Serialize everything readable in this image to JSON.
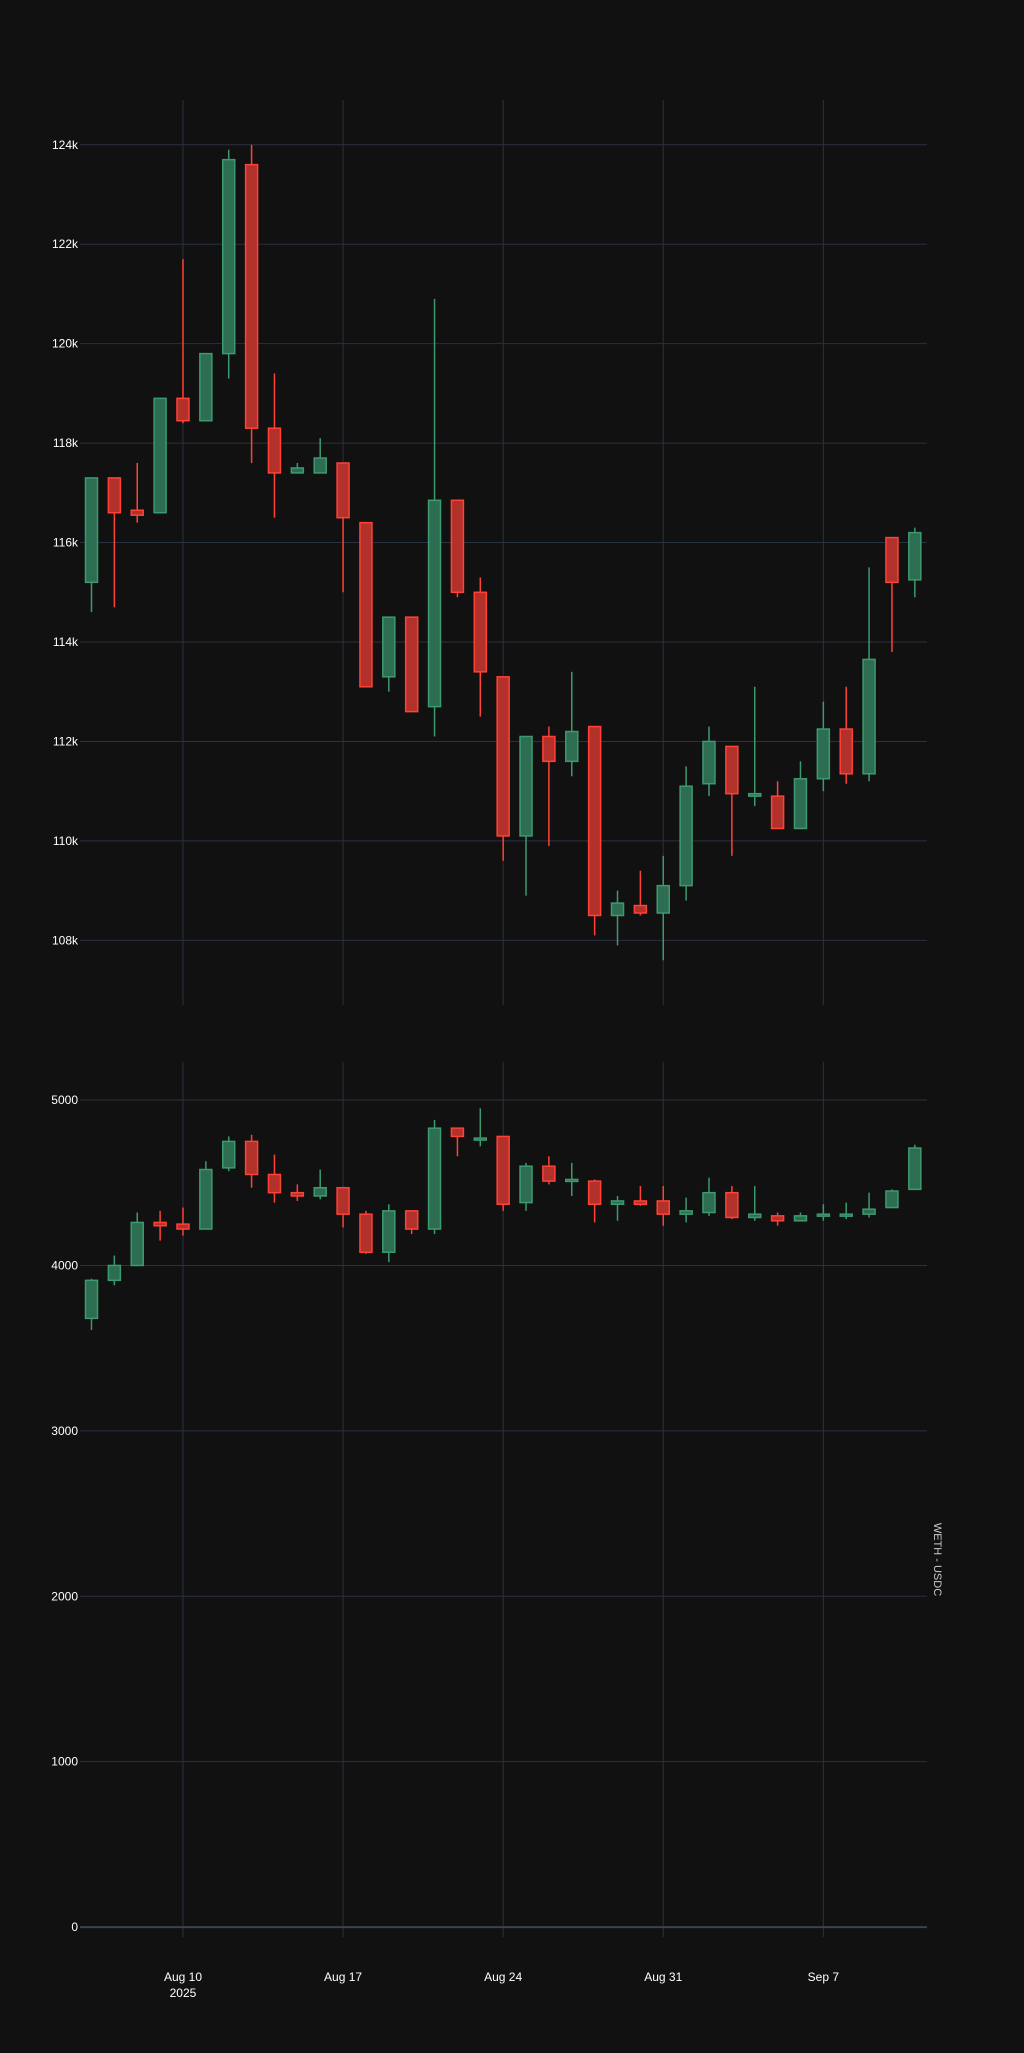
{
  "background": "#111111",
  "colors": {
    "up": "#3d9970",
    "up_fill": "#2d6e52",
    "down": "#ff4136",
    "down_fill": "#b2322b",
    "grid": "#2a3140",
    "tick_text": "#ffffff",
    "zero_line": "#3a4252"
  },
  "chart_data": [
    {
      "type": "candlestick",
      "title": "",
      "ylabel": "",
      "series_label": "",
      "ylim": [
        106700,
        124900
      ],
      "yticks": [
        108000,
        110000,
        112000,
        114000,
        116000,
        118000,
        120000,
        122000,
        124000
      ],
      "ytick_labels": [
        "108k",
        "110k",
        "112k",
        "114k",
        "116k",
        "118k",
        "120k",
        "122k",
        "124k"
      ],
      "grid": true,
      "candles": [
        {
          "date": "2025-08-06",
          "open": 115200,
          "high": 117300,
          "low": 114600,
          "close": 117300
        },
        {
          "date": "2025-08-07",
          "open": 117300,
          "high": 117300,
          "low": 114700,
          "close": 116600
        },
        {
          "date": "2025-08-08",
          "open": 116650,
          "high": 117600,
          "low": 116400,
          "close": 116550
        },
        {
          "date": "2025-08-09",
          "open": 116600,
          "high": 118900,
          "low": 116600,
          "close": 118900
        },
        {
          "date": "2025-08-10",
          "open": 118900,
          "high": 121700,
          "low": 118400,
          "close": 118450
        },
        {
          "date": "2025-08-11",
          "open": 118450,
          "high": 119800,
          "low": 118450,
          "close": 119800
        },
        {
          "date": "2025-08-12",
          "open": 119800,
          "high": 123900,
          "low": 119300,
          "close": 123700
        },
        {
          "date": "2025-08-13",
          "open": 123600,
          "high": 124000,
          "low": 117600,
          "close": 118300
        },
        {
          "date": "2025-08-14",
          "open": 118300,
          "high": 119400,
          "low": 116500,
          "close": 117400
        },
        {
          "date": "2025-08-15",
          "open": 117400,
          "high": 117600,
          "low": 117400,
          "close": 117500
        },
        {
          "date": "2025-08-16",
          "open": 117400,
          "high": 118100,
          "low": 117400,
          "close": 117700
        },
        {
          "date": "2025-08-17",
          "open": 117600,
          "high": 117600,
          "low": 115000,
          "close": 116500
        },
        {
          "date": "2025-08-18",
          "open": 116400,
          "high": 116400,
          "low": 113100,
          "close": 113100
        },
        {
          "date": "2025-08-19",
          "open": 113300,
          "high": 114500,
          "low": 113000,
          "close": 114500
        },
        {
          "date": "2025-08-20",
          "open": 114500,
          "high": 114500,
          "low": 112600,
          "close": 112600
        },
        {
          "date": "2025-08-21",
          "open": 112700,
          "high": 120900,
          "low": 112100,
          "close": 116850
        },
        {
          "date": "2025-08-22",
          "open": 116850,
          "high": 116850,
          "low": 114900,
          "close": 115000
        },
        {
          "date": "2025-08-23",
          "open": 115000,
          "high": 115300,
          "low": 112500,
          "close": 113400
        },
        {
          "date": "2025-08-24",
          "open": 113300,
          "high": 113300,
          "low": 109600,
          "close": 110100
        },
        {
          "date": "2025-08-25",
          "open": 110100,
          "high": 112100,
          "low": 108900,
          "close": 112100
        },
        {
          "date": "2025-08-26",
          "open": 112100,
          "high": 112300,
          "low": 109900,
          "close": 111600
        },
        {
          "date": "2025-08-27",
          "open": 111600,
          "high": 113400,
          "low": 111300,
          "close": 112200
        },
        {
          "date": "2025-08-28",
          "open": 112300,
          "high": 112300,
          "low": 108100,
          "close": 108500
        },
        {
          "date": "2025-08-29",
          "open": 108500,
          "high": 109000,
          "low": 107900,
          "close": 108750
        },
        {
          "date": "2025-08-30",
          "open": 108700,
          "high": 109400,
          "low": 108500,
          "close": 108550
        },
        {
          "date": "2025-08-31",
          "open": 108550,
          "high": 109700,
          "low": 107600,
          "close": 109100
        },
        {
          "date": "2025-09-01",
          "open": 109100,
          "high": 111500,
          "low": 108800,
          "close": 111100
        },
        {
          "date": "2025-09-02",
          "open": 111150,
          "high": 112300,
          "low": 110900,
          "close": 112000
        },
        {
          "date": "2025-09-03",
          "open": 111900,
          "high": 111900,
          "low": 109700,
          "close": 110950
        },
        {
          "date": "2025-09-04",
          "open": 110900,
          "high": 113100,
          "low": 110700,
          "close": 110950
        },
        {
          "date": "2025-09-05",
          "open": 110900,
          "high": 111200,
          "low": 110250,
          "close": 110250
        },
        {
          "date": "2025-09-06",
          "open": 110250,
          "high": 111600,
          "low": 110250,
          "close": 111250
        },
        {
          "date": "2025-09-07",
          "open": 111250,
          "high": 112800,
          "low": 111000,
          "close": 112250
        },
        {
          "date": "2025-09-08",
          "open": 112250,
          "high": 113100,
          "low": 111150,
          "close": 111350
        },
        {
          "date": "2025-09-09",
          "open": 111350,
          "high": 115500,
          "low": 111200,
          "close": 113650
        },
        {
          "date": "2025-09-10",
          "open": 116100,
          "high": 116100,
          "low": 113800,
          "close": 115200
        },
        {
          "date": "2025-09-11",
          "open": 115250,
          "high": 116300,
          "low": 114900,
          "close": 116200
        }
      ]
    },
    {
      "type": "candlestick",
      "title": "",
      "ylabel": "",
      "series_label": "WETH - USDC",
      "ylim": [
        -60,
        5230
      ],
      "yticks": [
        0,
        1000,
        2000,
        3000,
        4000,
        5000
      ],
      "ytick_labels": [
        "0",
        "1000",
        "2000",
        "3000",
        "4000",
        "5000"
      ],
      "grid": true,
      "xticks": [
        "2025-08-10",
        "2025-08-17",
        "2025-08-24",
        "2025-08-31",
        "2025-09-07"
      ],
      "xtick_labels": [
        "Aug 10",
        "Aug 17",
        "Aug 24",
        "Aug 31",
        "Sep 7"
      ],
      "xtick_year": "2025",
      "candles": [
        {
          "date": "2025-08-06",
          "open": 3680,
          "high": 3920,
          "low": 3610,
          "close": 3910
        },
        {
          "date": "2025-08-07",
          "open": 3910,
          "high": 4060,
          "low": 3880,
          "close": 4000
        },
        {
          "date": "2025-08-08",
          "open": 4000,
          "high": 4320,
          "low": 4000,
          "close": 4260
        },
        {
          "date": "2025-08-09",
          "open": 4260,
          "high": 4330,
          "low": 4150,
          "close": 4240
        },
        {
          "date": "2025-08-10",
          "open": 4250,
          "high": 4350,
          "low": 4180,
          "close": 4220
        },
        {
          "date": "2025-08-11",
          "open": 4220,
          "high": 4630,
          "low": 4220,
          "close": 4580
        },
        {
          "date": "2025-08-12",
          "open": 4590,
          "high": 4780,
          "low": 4570,
          "close": 4750
        },
        {
          "date": "2025-08-13",
          "open": 4750,
          "high": 4790,
          "low": 4470,
          "close": 4550
        },
        {
          "date": "2025-08-14",
          "open": 4550,
          "high": 4670,
          "low": 4380,
          "close": 4440
        },
        {
          "date": "2025-08-15",
          "open": 4440,
          "high": 4490,
          "low": 4390,
          "close": 4420
        },
        {
          "date": "2025-08-16",
          "open": 4420,
          "high": 4580,
          "low": 4400,
          "close": 4470
        },
        {
          "date": "2025-08-17",
          "open": 4470,
          "high": 4470,
          "low": 4230,
          "close": 4310
        },
        {
          "date": "2025-08-18",
          "open": 4310,
          "high": 4330,
          "low": 4070,
          "close": 4080
        },
        {
          "date": "2025-08-19",
          "open": 4080,
          "high": 4370,
          "low": 4020,
          "close": 4330
        },
        {
          "date": "2025-08-20",
          "open": 4330,
          "high": 4330,
          "low": 4190,
          "close": 4220
        },
        {
          "date": "2025-08-21",
          "open": 4220,
          "high": 4880,
          "low": 4190,
          "close": 4830
        },
        {
          "date": "2025-08-22",
          "open": 4830,
          "high": 4830,
          "low": 4660,
          "close": 4780
        },
        {
          "date": "2025-08-23",
          "open": 4770,
          "high": 4950,
          "low": 4720,
          "close": 4770
        },
        {
          "date": "2025-08-24",
          "open": 4780,
          "high": 4780,
          "low": 4330,
          "close": 4370
        },
        {
          "date": "2025-08-25",
          "open": 4380,
          "high": 4620,
          "low": 4330,
          "close": 4600
        },
        {
          "date": "2025-08-26",
          "open": 4600,
          "high": 4660,
          "low": 4490,
          "close": 4510
        },
        {
          "date": "2025-08-27",
          "open": 4510,
          "high": 4620,
          "low": 4420,
          "close": 4520
        },
        {
          "date": "2025-08-28",
          "open": 4510,
          "high": 4520,
          "low": 4260,
          "close": 4370
        },
        {
          "date": "2025-08-29",
          "open": 4370,
          "high": 4420,
          "low": 4270,
          "close": 4390
        },
        {
          "date": "2025-08-30",
          "open": 4390,
          "high": 4480,
          "low": 4360,
          "close": 4370
        },
        {
          "date": "2025-08-31",
          "open": 4390,
          "high": 4480,
          "low": 4240,
          "close": 4310
        },
        {
          "date": "2025-09-01",
          "open": 4310,
          "high": 4410,
          "low": 4260,
          "close": 4330
        },
        {
          "date": "2025-09-02",
          "open": 4320,
          "high": 4530,
          "low": 4300,
          "close": 4440
        },
        {
          "date": "2025-09-03",
          "open": 4440,
          "high": 4480,
          "low": 4280,
          "close": 4290
        },
        {
          "date": "2025-09-04",
          "open": 4290,
          "high": 4480,
          "low": 4270,
          "close": 4310
        },
        {
          "date": "2025-09-05",
          "open": 4300,
          "high": 4320,
          "low": 4240,
          "close": 4270
        },
        {
          "date": "2025-09-06",
          "open": 4270,
          "high": 4320,
          "low": 4270,
          "close": 4300
        },
        {
          "date": "2025-09-07",
          "open": 4300,
          "high": 4370,
          "low": 4270,
          "close": 4310
        },
        {
          "date": "2025-09-08",
          "open": 4310,
          "high": 4380,
          "low": 4280,
          "close": 4310
        },
        {
          "date": "2025-09-09",
          "open": 4310,
          "high": 4440,
          "low": 4290,
          "close": 4340
        },
        {
          "date": "2025-09-10",
          "open": 4350,
          "high": 4460,
          "low": 4350,
          "close": 4450
        },
        {
          "date": "2025-09-11",
          "open": 4460,
          "high": 4730,
          "low": 4460,
          "close": 4710
        }
      ]
    }
  ]
}
